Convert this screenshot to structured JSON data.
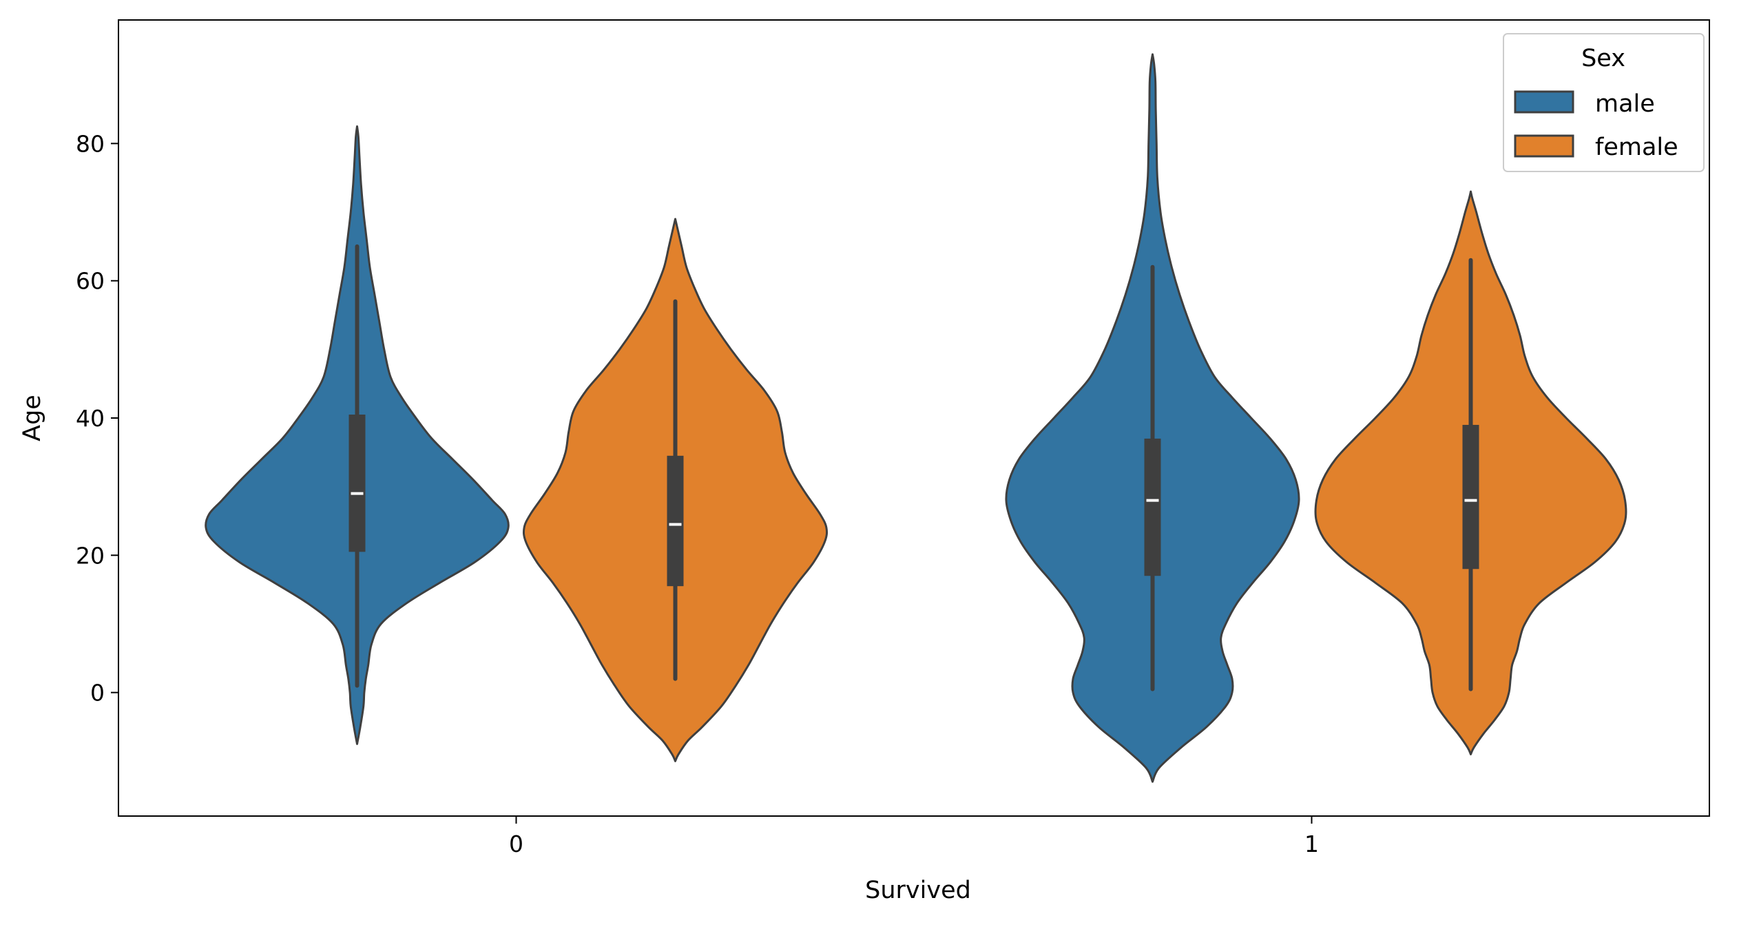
{
  "chart_data": {
    "type": "violin",
    "title": "",
    "xlabel": "Survived",
    "ylabel": "Age",
    "categories": [
      "0",
      "1"
    ],
    "ylim": [
      -18,
      98
    ],
    "yticks": [
      0,
      20,
      40,
      60,
      80
    ],
    "grid": false,
    "legend": {
      "title": "Sex",
      "placement": "top-right",
      "entries": [
        "male",
        "female"
      ]
    },
    "series": [
      {
        "name": "male",
        "color": "#3274a1",
        "violins": [
          {
            "category": "0",
            "range": [
              -7.5,
              82.5
            ],
            "q1": 20.5,
            "median": 29,
            "q3": 40.5,
            "whisker_low": 1,
            "whisker_high": 65,
            "profile": [
              [
                -7.5,
                0.0
              ],
              [
                -5,
                0.02
              ],
              [
                -2,
                0.04
              ],
              [
                0,
                0.045
              ],
              [
                2,
                0.055
              ],
              [
                4,
                0.07
              ],
              [
                7,
                0.09
              ],
              [
                10,
                0.15
              ],
              [
                13,
                0.31
              ],
              [
                16,
                0.52
              ],
              [
                19,
                0.74
              ],
              [
                22,
                0.9
              ],
              [
                24,
                0.95
              ],
              [
                26,
                0.93
              ],
              [
                28,
                0.85
              ],
              [
                31,
                0.73
              ],
              [
                34,
                0.6
              ],
              [
                37,
                0.47
              ],
              [
                40,
                0.37
              ],
              [
                43,
                0.28
              ],
              [
                46,
                0.21
              ],
              [
                50,
                0.17
              ],
              [
                54,
                0.14
              ],
              [
                58,
                0.11
              ],
              [
                62,
                0.08
              ],
              [
                66,
                0.06
              ],
              [
                70,
                0.04
              ],
              [
                74,
                0.025
              ],
              [
                78,
                0.015
              ],
              [
                81,
                0.008
              ],
              [
                82.5,
                0.0
              ]
            ]
          },
          {
            "category": "1",
            "range": [
              -13,
              93
            ],
            "q1": 17,
            "median": 28,
            "q3": 37,
            "whisker_low": 0.5,
            "whisker_high": 62,
            "profile": [
              [
                -13,
                0.0
              ],
              [
                -11,
                0.04
              ],
              [
                -8,
                0.18
              ],
              [
                -5,
                0.34
              ],
              [
                -2,
                0.46
              ],
              [
                0,
                0.5
              ],
              [
                2,
                0.5
              ],
              [
                4,
                0.47
              ],
              [
                6,
                0.44
              ],
              [
                8,
                0.43
              ],
              [
                10,
                0.46
              ],
              [
                13,
                0.53
              ],
              [
                16,
                0.63
              ],
              [
                19,
                0.74
              ],
              [
                22,
                0.83
              ],
              [
                25,
                0.89
              ],
              [
                28,
                0.92
              ],
              [
                31,
                0.9
              ],
              [
                34,
                0.84
              ],
              [
                37,
                0.74
              ],
              [
                40,
                0.62
              ],
              [
                43,
                0.5
              ],
              [
                46,
                0.39
              ],
              [
                50,
                0.3
              ],
              [
                54,
                0.23
              ],
              [
                58,
                0.17
              ],
              [
                62,
                0.12
              ],
              [
                66,
                0.08
              ],
              [
                70,
                0.05
              ],
              [
                75,
                0.03
              ],
              [
                80,
                0.025
              ],
              [
                85,
                0.02
              ],
              [
                89,
                0.018
              ],
              [
                91.5,
                0.01
              ],
              [
                93,
                0.0
              ]
            ]
          }
        ]
      },
      {
        "name": "female",
        "color": "#e1812c",
        "violins": [
          {
            "category": "0",
            "range": [
              -10,
              69
            ],
            "q1": 15.5,
            "median": 24.5,
            "q3": 34.5,
            "whisker_low": 2,
            "whisker_high": 57,
            "profile": [
              [
                -10,
                0.0
              ],
              [
                -9,
                0.02
              ],
              [
                -7,
                0.08
              ],
              [
                -5,
                0.17
              ],
              [
                -2,
                0.29
              ],
              [
                1,
                0.38
              ],
              [
                4,
                0.46
              ],
              [
                7,
                0.53
              ],
              [
                10,
                0.6
              ],
              [
                13,
                0.68
              ],
              [
                16,
                0.77
              ],
              [
                19,
                0.87
              ],
              [
                22,
                0.94
              ],
              [
                24,
                0.95
              ],
              [
                26,
                0.91
              ],
              [
                29,
                0.82
              ],
              [
                32,
                0.74
              ],
              [
                35,
                0.69
              ],
              [
                38,
                0.67
              ],
              [
                41,
                0.64
              ],
              [
                44,
                0.56
              ],
              [
                47,
                0.45
              ],
              [
                50,
                0.35
              ],
              [
                53,
                0.26
              ],
              [
                56,
                0.18
              ],
              [
                59,
                0.12
              ],
              [
                62,
                0.07
              ],
              [
                65,
                0.04
              ],
              [
                68,
                0.01
              ],
              [
                69,
                0.0
              ]
            ]
          },
          {
            "category": "1",
            "range": [
              -9,
              73
            ],
            "q1": 18,
            "median": 28,
            "q3": 39,
            "whisker_low": 0.5,
            "whisker_high": 63,
            "profile": [
              [
                -9,
                0.0
              ],
              [
                -8,
                0.02
              ],
              [
                -6,
                0.08
              ],
              [
                -4,
                0.15
              ],
              [
                -2,
                0.21
              ],
              [
                0,
                0.24
              ],
              [
                2,
                0.25
              ],
              [
                4,
                0.26
              ],
              [
                6,
                0.29
              ],
              [
                8,
                0.31
              ],
              [
                10,
                0.34
              ],
              [
                13,
                0.43
              ],
              [
                16,
                0.6
              ],
              [
                19,
                0.78
              ],
              [
                22,
                0.91
              ],
              [
                25,
                0.97
              ],
              [
                28,
                0.97
              ],
              [
                31,
                0.93
              ],
              [
                34,
                0.85
              ],
              [
                37,
                0.73
              ],
              [
                40,
                0.6
              ],
              [
                43,
                0.48
              ],
              [
                46,
                0.39
              ],
              [
                49,
                0.34
              ],
              [
                52,
                0.31
              ],
              [
                55,
                0.27
              ],
              [
                58,
                0.22
              ],
              [
                61,
                0.16
              ],
              [
                64,
                0.11
              ],
              [
                67,
                0.07
              ],
              [
                70,
                0.035
              ],
              [
                72,
                0.01
              ],
              [
                73,
                0.0
              ]
            ]
          }
        ]
      }
    ]
  }
}
